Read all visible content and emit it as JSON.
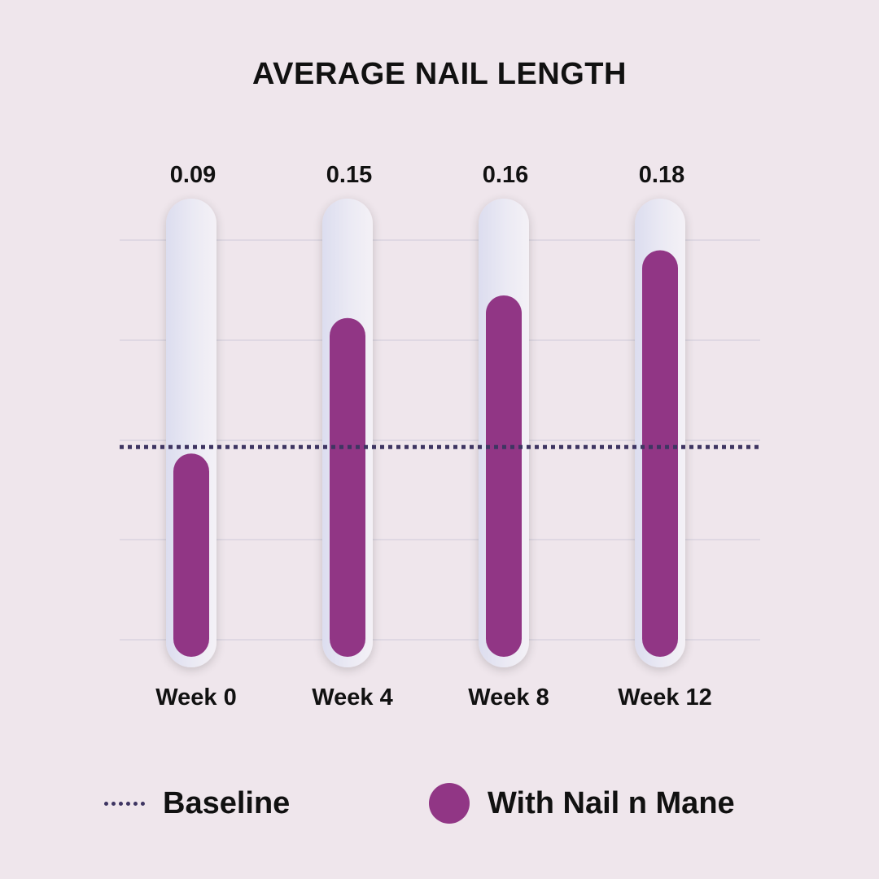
{
  "colors": {
    "background": "#EFE6EC",
    "bar_fill": "#913685",
    "track": "#E6E4F0",
    "baseline_line": "#3E3562",
    "grid": "#DAD4E0",
    "text": "#111111"
  },
  "chart_data": {
    "type": "bar",
    "title": "AVERAGE NAIL LENGTH",
    "categories": [
      "Week 0",
      "Week 4",
      "Week 8",
      "Week 12"
    ],
    "series": [
      {
        "name": "With Nail n Mane",
        "values": [
          0.09,
          0.15,
          0.16,
          0.18
        ],
        "value_labels": [
          "0.09",
          "0.15",
          "0.16",
          "0.18"
        ]
      }
    ],
    "baseline": {
      "name": "Baseline",
      "value": 0.09,
      "style": "dotted"
    },
    "xlabel": "",
    "ylabel": "",
    "ylim": [
      0,
      0.2
    ],
    "grid": true,
    "legend_position": "bottom"
  },
  "legend": {
    "baseline_label": "Baseline",
    "series_label": "With Nail n Mane"
  }
}
